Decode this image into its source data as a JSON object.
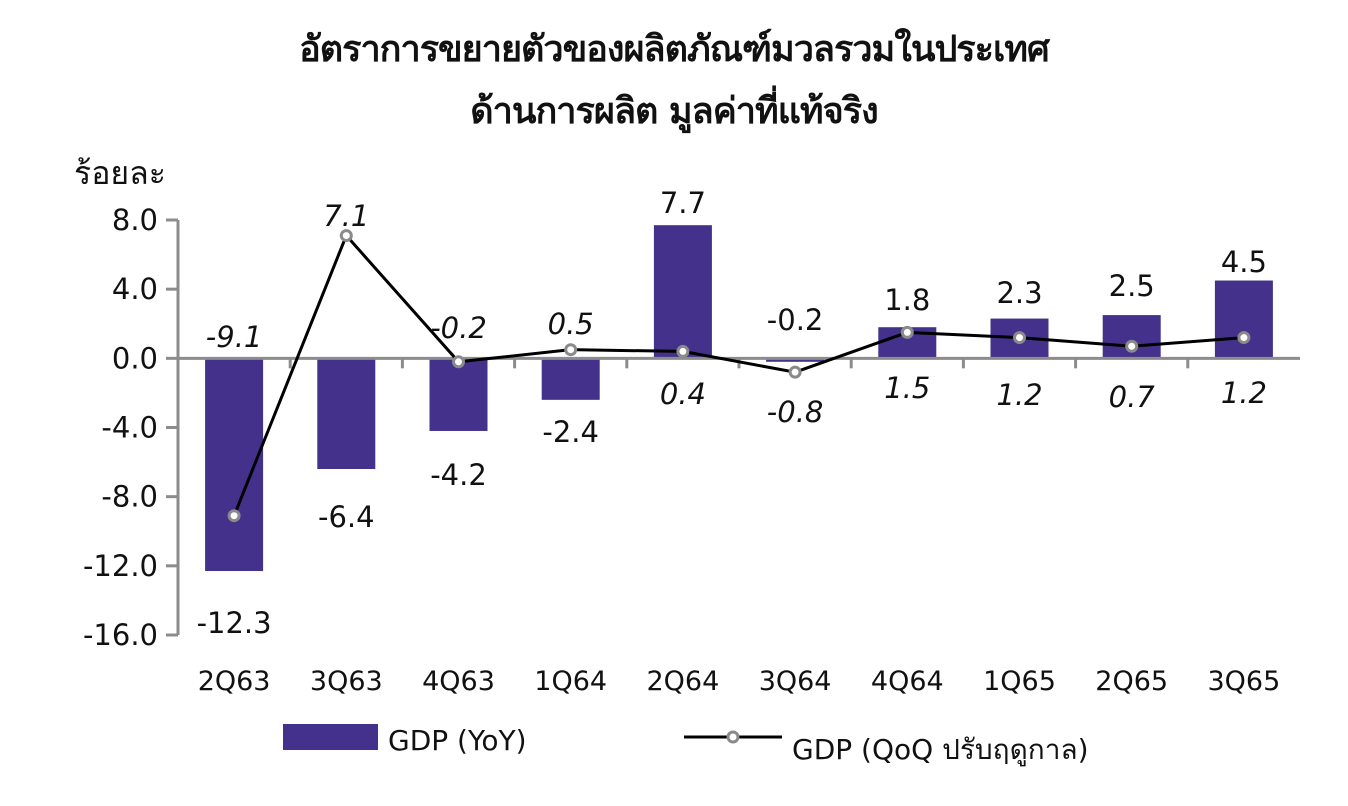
{
  "chart_data": {
    "type": "bar+line",
    "title": "อัตราการขยายตัวของผลิตภัณฑ์มวลรวมในประเทศ",
    "subtitle": "ด้านการผลิต มูลค่าที่แท้จริง",
    "ylabel": "ร้อยละ",
    "xlabel": "",
    "ylim": [
      -16,
      8
    ],
    "yticks": [
      "8.0",
      "4.0",
      "0.0",
      "-4.0",
      "-8.0",
      "-12.0",
      "-16.0"
    ],
    "ytick_values": [
      8,
      4,
      0,
      -4,
      -8,
      -12,
      -16
    ],
    "categories": [
      "2Q63",
      "3Q63",
      "4Q63",
      "1Q64",
      "2Q64",
      "3Q64",
      "4Q64",
      "1Q65",
      "2Q65",
      "3Q65"
    ],
    "series": [
      {
        "name": "GDP (YoY)",
        "type": "bar",
        "color": "#43318b",
        "values": [
          -12.3,
          -6.4,
          -4.2,
          -2.4,
          7.7,
          -0.2,
          1.8,
          2.3,
          2.5,
          4.5
        ],
        "labels": [
          "-12.3",
          "-6.4",
          "-4.2",
          "-2.4",
          "7.7",
          "-0.2",
          "1.8",
          "2.3",
          "2.5",
          "4.5"
        ]
      },
      {
        "name": "GDP (QoQ ปรับฤดูกาล)",
        "type": "line",
        "color": "#000000",
        "marker_color": "#8a8a8a",
        "values": [
          -9.1,
          7.1,
          -0.2,
          0.5,
          0.4,
          -0.8,
          1.5,
          1.2,
          0.7,
          1.2
        ],
        "labels": [
          "-9.1",
          "7.1",
          "-0.2",
          "0.5",
          "0.4",
          "-0.8",
          "1.5",
          "1.2",
          "0.7",
          "1.2"
        ]
      }
    ],
    "grid": false,
    "legend_position": "bottom"
  },
  "legend": {
    "bar_label": "GDP (YoY)",
    "line_label": "GDP (QoQ  ปรับฤดูกาล)"
  }
}
